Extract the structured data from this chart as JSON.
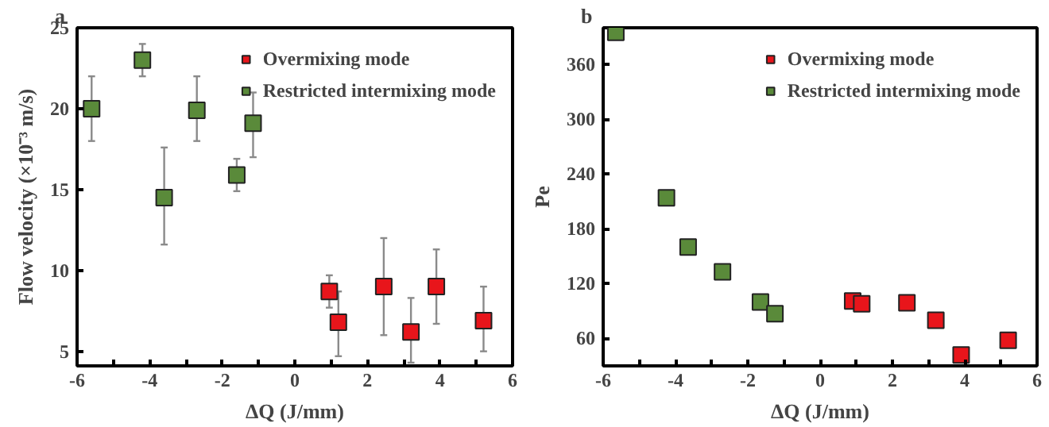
{
  "chart_data": [
    {
      "type": "scatter",
      "annotations": [
        "a"
      ],
      "xlabel": "ΔQ (J/mm)",
      "ylabel": "Flow velocity (×10⁻³ m/s)",
      "xlim": [
        -6,
        6
      ],
      "ylim": [
        4.1,
        25
      ],
      "xticks": [
        -6,
        {
          "value": -5,
          "label": null
        },
        -4,
        {
          "value": -3,
          "label": null
        },
        -2,
        {
          "value": -1,
          "label": null
        },
        0,
        {
          "value": 1,
          "label": null
        },
        2,
        {
          "value": 3,
          "label": null
        },
        4,
        {
          "value": 5,
          "label": null
        },
        6
      ],
      "yticks": [
        5,
        10,
        15,
        20,
        25
      ],
      "grid": false,
      "legend": "top right",
      "marker": "square",
      "series": [
        {
          "name": "Overmixing mode",
          "color": "#e8151b",
          "x": [
            0.95,
            1.2,
            2.45,
            3.2,
            3.9,
            5.2
          ],
          "values": [
            8.7,
            6.8,
            9.0,
            6.2,
            9.0,
            6.9
          ],
          "errors": [
            [
              7.7,
              9.7
            ],
            [
              4.7,
              8.7
            ],
            [
              6.0,
              12.0
            ],
            [
              4.3,
              8.3
            ],
            [
              6.7,
              11.3
            ],
            [
              5.0,
              9.0
            ]
          ]
        },
        {
          "name": "Restricted intermixing mode",
          "color": "#5a8a3a",
          "x": [
            -5.6,
            -4.2,
            -3.6,
            -2.7,
            -1.6,
            -1.15
          ],
          "values": [
            20.0,
            23.0,
            14.5,
            19.9,
            15.9,
            19.1
          ],
          "errors": [
            [
              18.0,
              22.0
            ],
            [
              22.0,
              24.0
            ],
            [
              11.6,
              17.6
            ],
            [
              18.0,
              22.0
            ],
            [
              14.9,
              16.9
            ],
            [
              17.0,
              21.0
            ]
          ]
        }
      ]
    },
    {
      "type": "scatter",
      "annotations": [
        "b"
      ],
      "xlabel": "ΔQ (J/mm)",
      "ylabel": "Pe",
      "xlim": [
        -6,
        6
      ],
      "ylim": [
        30,
        400
      ],
      "xticks": [
        -6,
        {
          "value": -5,
          "label": null
        },
        -4,
        {
          "value": -3,
          "label": null
        },
        -2,
        {
          "value": -1,
          "label": null
        },
        0,
        {
          "value": 1,
          "label": null
        },
        2,
        {
          "value": 3,
          "label": null
        },
        4,
        {
          "value": 5,
          "label": null
        },
        6
      ],
      "yticks": [
        60,
        120,
        180,
        240,
        300,
        360
      ],
      "grid": false,
      "legend": "top right",
      "marker": "square",
      "series": [
        {
          "name": "Overmixing mode",
          "color": "#e8151b",
          "x": [
            0.9,
            1.15,
            2.4,
            3.2,
            3.9,
            5.2
          ],
          "values": [
            101,
            98,
            99,
            80,
            42,
            58
          ]
        },
        {
          "name": "Restricted intermixing mode",
          "color": "#5a8a3a",
          "x": [
            -5.65,
            -4.25,
            -3.65,
            -2.7,
            -1.65,
            -1.25
          ],
          "values": [
            395,
            214,
            160,
            133,
            100,
            87
          ]
        }
      ]
    }
  ]
}
